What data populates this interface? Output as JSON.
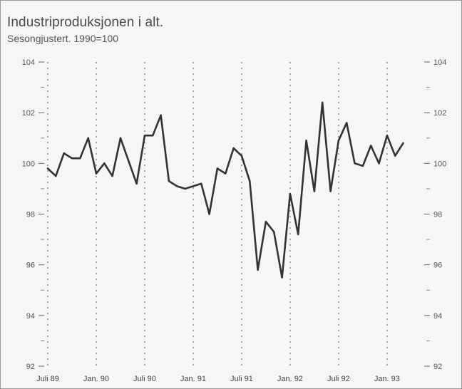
{
  "chart_data": {
    "type": "line",
    "title": "Industriproduksjonen i alt.",
    "subtitle": "Sesongjustert. 1990=100",
    "xlabel": "",
    "ylabel": "",
    "ylim": [
      92,
      104
    ],
    "yticks_labeled": [
      "92",
      "94",
      "96",
      "98",
      "100",
      "102",
      "104"
    ],
    "yticks_minor": [
      93,
      95,
      97,
      99,
      101,
      103
    ],
    "xtick_labels": [
      "Juli 89",
      "Jan. 90",
      "Juli 90",
      "Jan. 91",
      "Juli 91",
      "Jan. 92",
      "Juli 92",
      "Jan. 93"
    ],
    "grid": "vertical dotted lines at half-year ticks",
    "series": [
      {
        "color": "#333333",
        "values": [
          99.8,
          99.5,
          100.4,
          100.2,
          100.2,
          101.0,
          99.6,
          100.0,
          99.5,
          101.0,
          100.1,
          99.2,
          101.1,
          101.1,
          101.9,
          99.3,
          99.1,
          99.0,
          99.1,
          99.2,
          98.0,
          99.8,
          99.6,
          100.6,
          100.3,
          99.3,
          95.8,
          97.7,
          97.3,
          95.5,
          98.8,
          97.2,
          100.9,
          98.9,
          102.4,
          98.9,
          100.9,
          101.6,
          100.0,
          99.9,
          100.7,
          100.0,
          101.1,
          100.3,
          100.8
        ]
      }
    ]
  }
}
